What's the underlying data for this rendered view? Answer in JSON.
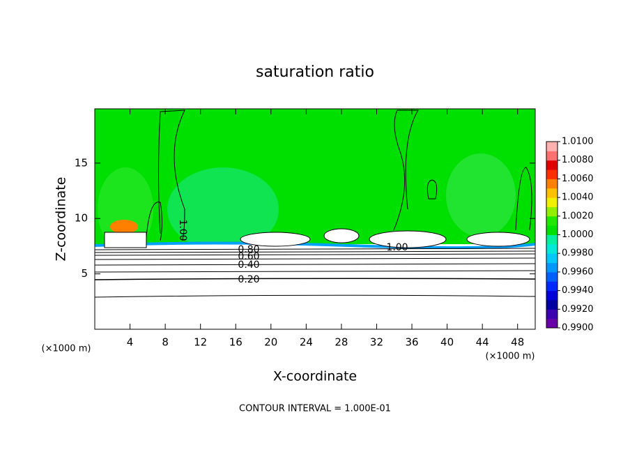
{
  "chart_data": {
    "type": "contour",
    "title": "saturation ratio",
    "xlabel": "X-coordinate",
    "ylabel": "Z-coordinate",
    "xunit": "(×1000 m)",
    "footer": "CONTOUR INTERVAL = 1.000E-01",
    "xlim": [
      0,
      50
    ],
    "xticks": [
      4,
      8,
      12,
      16,
      20,
      24,
      28,
      32,
      36,
      40,
      44,
      48
    ],
    "ylim": [
      0,
      19.9
    ],
    "yticks": [
      5,
      10,
      15
    ],
    "contour_labels": [
      "1.00",
      "0.80",
      "0.60",
      "0.40",
      "0.20",
      "1.00"
    ],
    "colorbar": {
      "lim": [
        0.99,
        1.01
      ],
      "colors": [
        "#6a00a8",
        "#3a00b0",
        "#0000a0",
        "#0000d8",
        "#0028ff",
        "#0060ff",
        "#0098ff",
        "#00c8ff",
        "#00e8d8",
        "#00f0a0",
        "#00e000",
        "#20e800",
        "#90f000",
        "#f0f000",
        "#ffc000",
        "#ff8000",
        "#ff3000",
        "#e00000",
        "#ff7070",
        "#ffb0b0"
      ],
      "ticks": [
        {
          "value": 0.99,
          "label": "0.9900"
        },
        {
          "value": 0.992,
          "label": "0.9920"
        },
        {
          "value": 0.994,
          "label": "0.9940"
        },
        {
          "value": 0.996,
          "label": "0.9960"
        },
        {
          "value": 0.998,
          "label": "0.9980"
        },
        {
          "value": 1.0,
          "label": "1.0000"
        },
        {
          "value": 1.002,
          "label": "1.0020"
        },
        {
          "value": 1.004,
          "label": "1.0040"
        },
        {
          "value": 1.006,
          "label": "1.0060"
        },
        {
          "value": 1.008,
          "label": "1.0080"
        },
        {
          "value": 1.01,
          "label": "1.0100"
        }
      ]
    }
  }
}
